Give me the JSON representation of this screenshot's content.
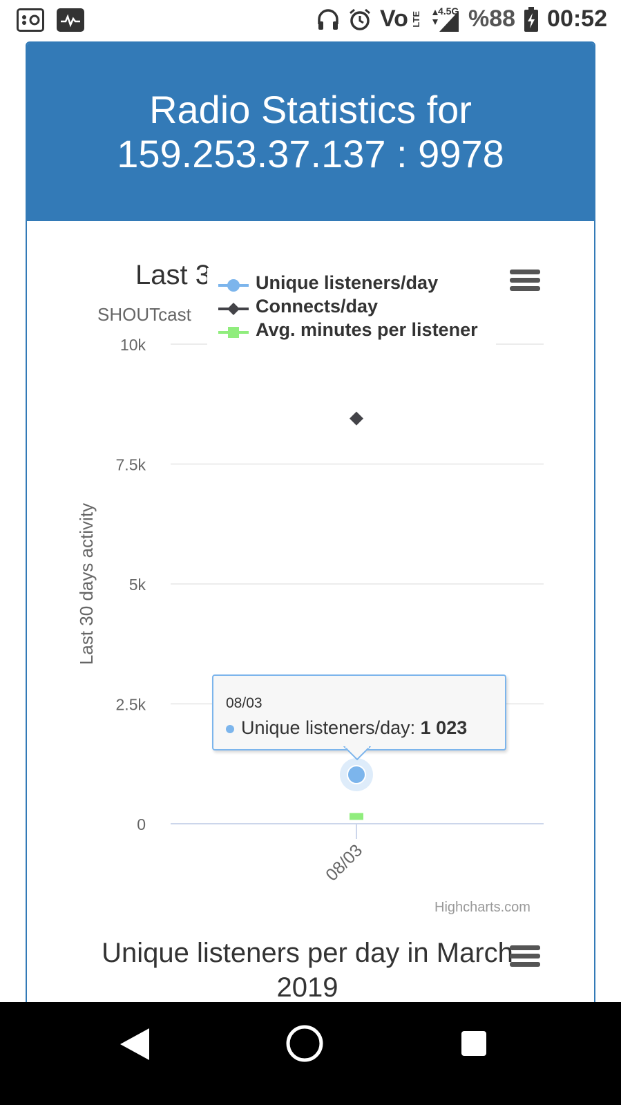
{
  "status_bar": {
    "left_icons": [
      "radio-icon",
      "activity-monitor-icon"
    ],
    "right_icons": [
      "headphones-icon",
      "alarm-icon",
      "volte-icon",
      "signal-icon",
      "battery-charging-icon"
    ],
    "volte_label": "Vo",
    "lte_label": "LTE",
    "network_label": "4.5G",
    "battery": "%88",
    "time": "00:52"
  },
  "header": {
    "title_line1": "Radio Statistics for",
    "title_line2": "159.253.37.137 : 9978"
  },
  "chart1": {
    "title": "Last 3",
    "subtitle": "SHOUTcast",
    "menu_icon": "hamburger-menu-icon",
    "credits": "Highcharts.com"
  },
  "tooltip": {
    "date": "08/03",
    "series": "Unique listeners/day:",
    "value": "1 023"
  },
  "chart2": {
    "title": "Unique listeners per day in March 2019",
    "menu_icon": "hamburger-menu-icon"
  },
  "chart_data": {
    "type": "scatter",
    "categories": [
      "08/03"
    ],
    "ylabel": "Last 30 days activity",
    "ylim": [
      0,
      10000
    ],
    "y_ticks": [
      "0",
      "2.5k",
      "5k",
      "7.5k",
      "10k"
    ],
    "y_tick_values": [
      0,
      2500,
      5000,
      7500,
      10000
    ],
    "legend_position": "top-right",
    "grid": true,
    "series": [
      {
        "name": "Unique listeners/day",
        "values": [
          1023
        ],
        "color": "#7cb5ec",
        "marker": "circle"
      },
      {
        "name": "Connects/day",
        "values": [
          8450
        ],
        "color": "#434348",
        "marker": "diamond"
      },
      {
        "name": "Avg. minutes per listener",
        "values": [
          80
        ],
        "color": "#90ed7d",
        "marker": "square"
      }
    ]
  },
  "nav_bar": {
    "icons": [
      "back-icon",
      "home-icon",
      "recents-icon"
    ]
  }
}
